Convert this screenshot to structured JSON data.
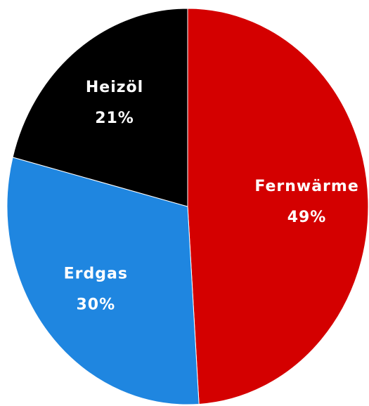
{
  "chart_data": {
    "type": "pie",
    "categories": [
      "Fernwärme",
      "Erdgas",
      "Heizöl"
    ],
    "values": [
      49,
      30,
      21
    ],
    "value_labels": [
      "49%",
      "30%",
      "21%"
    ],
    "colors": [
      "#d40000",
      "#1f86e0",
      "#000000"
    ]
  }
}
